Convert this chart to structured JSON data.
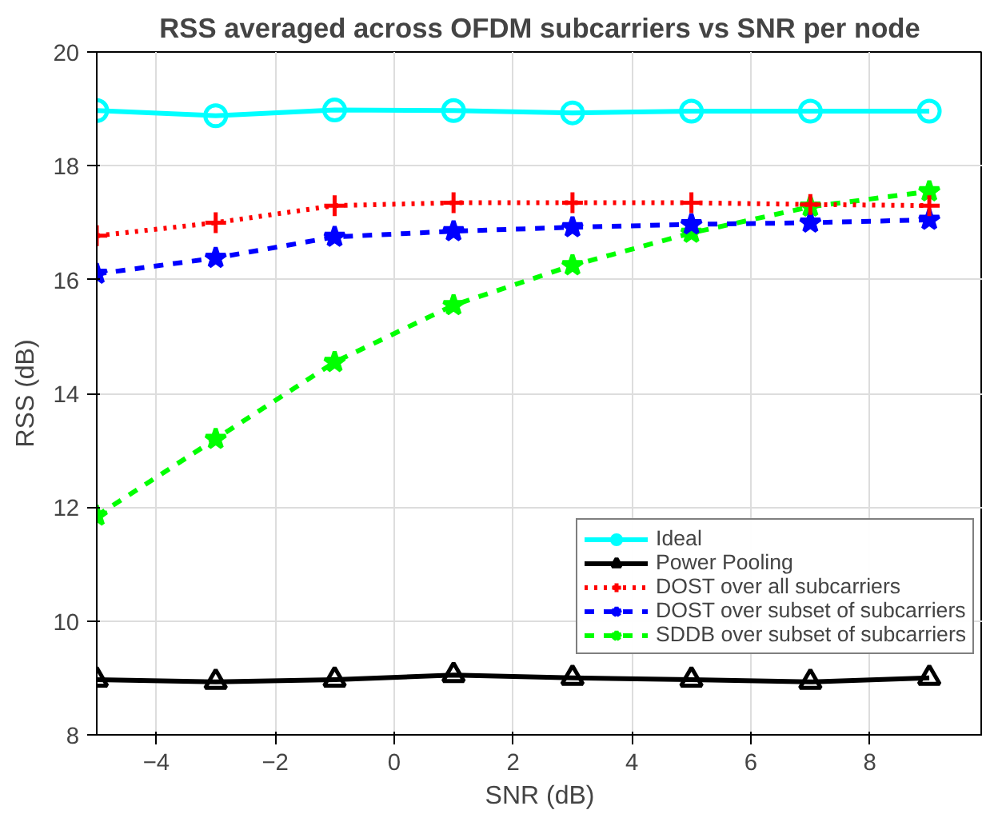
{
  "chart_data": {
    "type": "line",
    "title": "RSS averaged across OFDM subcarriers vs SNR per node",
    "xlabel": "SNR (dB)",
    "ylabel": "RSS (dB)",
    "x": [
      -5,
      -3,
      -1,
      1,
      3,
      5,
      7,
      9
    ],
    "series": [
      {
        "name": "Ideal",
        "color": "#00ffff",
        "marker": "circle",
        "line_style": "solid",
        "values": [
          18.97,
          18.88,
          18.98,
          18.97,
          18.93,
          18.96,
          18.96,
          18.96
        ]
      },
      {
        "name": "Power Pooling",
        "color": "#000000",
        "marker": "triangle",
        "line_style": "solid",
        "values": [
          8.97,
          8.93,
          8.97,
          9.05,
          9.0,
          8.97,
          8.93,
          9.0
        ]
      },
      {
        "name": "DOST over all subcarriers",
        "color": "#ff0000",
        "marker": "cross",
        "line_style": "dotted",
        "values": [
          16.77,
          17.0,
          17.3,
          17.35,
          17.35,
          17.35,
          17.32,
          17.3
        ]
      },
      {
        "name": "DOST over subset of subcarriers",
        "color": "#0000ff",
        "marker": "star",
        "line_style": "dashed",
        "values": [
          16.1,
          16.38,
          16.75,
          16.85,
          16.92,
          16.97,
          17.0,
          17.05
        ]
      },
      {
        "name": "SDDB over subset of subcarriers",
        "color": "#00ff00",
        "marker": "star",
        "line_style": "dashed",
        "values": [
          11.85,
          13.2,
          14.55,
          15.55,
          16.25,
          16.82,
          17.28,
          17.55
        ]
      }
    ],
    "xlim": [
      -5,
      9.9
    ],
    "ylim": [
      8,
      20
    ],
    "xticks": [
      -4,
      -2,
      0,
      2,
      4,
      6,
      8
    ],
    "yticks": [
      8,
      10,
      12,
      14,
      16,
      18,
      20
    ],
    "grid": true,
    "legend": "bottom right"
  }
}
